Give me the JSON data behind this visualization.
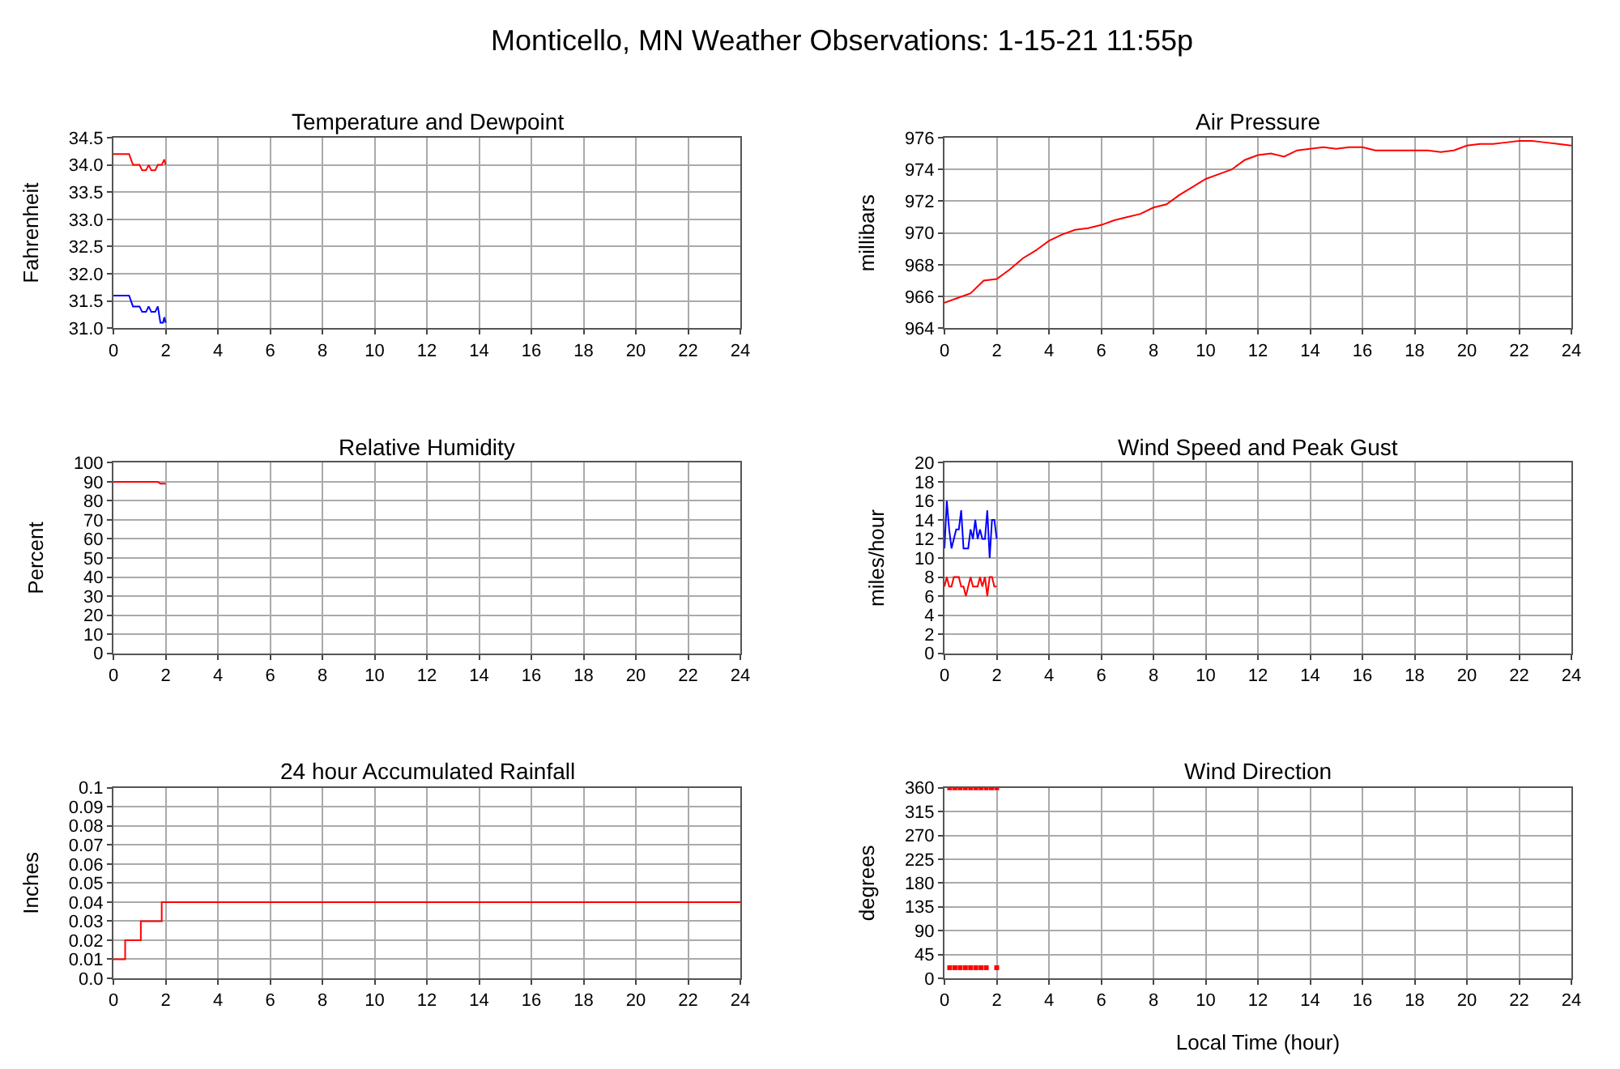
{
  "chart_data": [
    {
      "type": "line",
      "title": "Temperature and Dewpoint",
      "ylabel": "Fahrenheit",
      "annotations": [
        "Monticello, MN Weather Observations: 1-15-21 11:55p"
      ],
      "xlim": [
        0,
        24
      ],
      "xticks": [
        0,
        2,
        4,
        6,
        8,
        10,
        12,
        14,
        16,
        18,
        20,
        22,
        24
      ],
      "ylim": [
        31.0,
        34.5
      ],
      "yticks": [
        {
          "value": 31.0,
          "label": "31.0"
        },
        31.5,
        {
          "value": 32.0,
          "label": "32.0"
        },
        32.5,
        {
          "value": 33.0,
          "label": "33.0"
        },
        33.5,
        {
          "value": 34.0,
          "label": "34.0"
        },
        34.5
      ],
      "grid": true,
      "series": [
        {
          "color": "#ff0000",
          "x": [
            0,
            0.6,
            0.75,
            1.0,
            1.1,
            1.25,
            1.35,
            1.45,
            1.6,
            1.7,
            1.85,
            1.95,
            2.0
          ],
          "values": [
            34.2,
            34.2,
            34.0,
            34.0,
            33.9,
            33.9,
            34.0,
            33.9,
            33.9,
            34.0,
            34.0,
            34.1,
            34.0
          ]
        },
        {
          "color": "#0000ff",
          "x": [
            0,
            0.6,
            0.75,
            1.0,
            1.1,
            1.25,
            1.35,
            1.45,
            1.6,
            1.7,
            1.8,
            1.9,
            1.95,
            2.0
          ],
          "values": [
            31.6,
            31.6,
            31.4,
            31.4,
            31.3,
            31.3,
            31.4,
            31.3,
            31.3,
            31.4,
            31.1,
            31.1,
            31.2,
            31.1
          ]
        }
      ]
    },
    {
      "type": "line",
      "title": "Air Pressure",
      "ylabel": "millibars",
      "xlim": [
        0,
        24
      ],
      "xticks": [
        0,
        2,
        4,
        6,
        8,
        10,
        12,
        14,
        16,
        18,
        20,
        22,
        24
      ],
      "ylim": [
        964,
        976
      ],
      "yticks": [
        964,
        966,
        968,
        970,
        972,
        974,
        976
      ],
      "grid": true,
      "series": [
        {
          "color": "#ff0000",
          "x": [
            0,
            0.5,
            1,
            1.5,
            2,
            2.5,
            3,
            3.5,
            4,
            4.5,
            5,
            5.5,
            6,
            6.5,
            7,
            7.5,
            8,
            8.5,
            9,
            9.5,
            10,
            10.5,
            11,
            11.5,
            12,
            12.5,
            13,
            13.5,
            14,
            14.5,
            15,
            15.5,
            16,
            16.5,
            17,
            17.5,
            18,
            18.5,
            19,
            19.5,
            20,
            20.5,
            21,
            21.5,
            22,
            22.5,
            23,
            23.5,
            24
          ],
          "values": [
            965.6,
            965.9,
            966.2,
            967.0,
            967.1,
            967.7,
            968.4,
            968.9,
            969.5,
            969.9,
            970.2,
            970.3,
            970.5,
            970.8,
            971.0,
            971.2,
            971.6,
            971.8,
            972.4,
            972.9,
            973.4,
            973.7,
            974.0,
            974.6,
            974.9,
            975.0,
            974.8,
            975.2,
            975.3,
            975.4,
            975.3,
            975.4,
            975.4,
            975.2,
            975.2,
            975.2,
            975.2,
            975.2,
            975.1,
            975.2,
            975.5,
            975.6,
            975.6,
            975.7,
            975.8,
            975.8,
            975.7,
            975.6,
            975.5
          ]
        }
      ]
    },
    {
      "type": "line",
      "title": "Relative Humidity",
      "ylabel": "Percent",
      "xlim": [
        0,
        24
      ],
      "xticks": [
        0,
        2,
        4,
        6,
        8,
        10,
        12,
        14,
        16,
        18,
        20,
        22,
        24
      ],
      "ylim": [
        0,
        100
      ],
      "yticks": [
        0,
        10,
        20,
        30,
        40,
        50,
        60,
        70,
        80,
        90,
        100
      ],
      "grid": true,
      "series": [
        {
          "color": "#ff0000",
          "x": [
            0,
            1.7,
            1.8,
            2.0
          ],
          "values": [
            90,
            90,
            89,
            89
          ]
        }
      ]
    },
    {
      "type": "line",
      "title": "Wind Speed and Peak Gust",
      "ylabel": "miles/hour",
      "xlim": [
        0,
        24
      ],
      "xticks": [
        0,
        2,
        4,
        6,
        8,
        10,
        12,
        14,
        16,
        18,
        20,
        22,
        24
      ],
      "ylim": [
        0,
        20
      ],
      "yticks": [
        0,
        2,
        4,
        6,
        8,
        10,
        12,
        14,
        16,
        18,
        20
      ],
      "grid": true,
      "series": [
        {
          "color": "#0000ff",
          "x": [
            0,
            0.09,
            0.18,
            0.27,
            0.36,
            0.45,
            0.55,
            0.64,
            0.73,
            0.82,
            0.91,
            1.0,
            1.09,
            1.18,
            1.27,
            1.36,
            1.45,
            1.55,
            1.64,
            1.73,
            1.82,
            1.91,
            2.0
          ],
          "values": [
            11,
            16,
            13,
            11,
            12,
            13,
            13,
            15,
            11,
            11,
            11,
            13,
            12,
            14,
            12,
            13,
            12,
            12,
            15,
            10,
            14,
            14,
            12
          ]
        },
        {
          "color": "#ff0000",
          "x": [
            0,
            0.09,
            0.18,
            0.27,
            0.36,
            0.45,
            0.55,
            0.64,
            0.73,
            0.82,
            0.91,
            1.0,
            1.09,
            1.18,
            1.27,
            1.36,
            1.45,
            1.55,
            1.64,
            1.73,
            1.82,
            1.91,
            2.0
          ],
          "values": [
            7,
            8,
            7,
            7,
            8,
            8,
            8,
            7,
            7,
            6,
            7,
            8,
            7,
            7,
            7,
            8,
            7,
            8,
            6,
            8,
            8,
            7,
            7
          ]
        }
      ]
    },
    {
      "type": "step",
      "title": "24 hour Accumulated Rainfall",
      "ylabel": "Inches",
      "xlim": [
        0,
        24
      ],
      "xticks": [
        0,
        2,
        4,
        6,
        8,
        10,
        12,
        14,
        16,
        18,
        20,
        22,
        24
      ],
      "ylim": [
        0,
        0.1
      ],
      "yticks": [
        {
          "value": 0,
          "label": "0.0"
        },
        0.01,
        0.02,
        0.03,
        0.04,
        0.05,
        0.06,
        0.07,
        0.08,
        0.09,
        0.1
      ],
      "grid": true,
      "series": [
        {
          "color": "#ff0000",
          "x": [
            0,
            0.45,
            1.05,
            1.85,
            24
          ],
          "values": [
            0.01,
            0.02,
            0.03,
            0.04,
            0.04
          ]
        }
      ]
    },
    {
      "type": "scatter",
      "title": "Wind Direction",
      "xlabel": "Local Time (hour)",
      "ylabel": "degrees",
      "marker": "square",
      "xlim": [
        0,
        24
      ],
      "xticks": [
        0,
        2,
        4,
        6,
        8,
        10,
        12,
        14,
        16,
        18,
        20,
        22,
        24
      ],
      "ylim": [
        0,
        360
      ],
      "yticks": [
        0,
        45,
        90,
        135,
        180,
        225,
        270,
        315,
        360
      ],
      "grid": true,
      "series": [
        {
          "color": "#ff0000",
          "x": [
            0.2,
            0.4,
            0.6,
            0.8,
            1.0,
            1.2,
            1.4,
            1.6,
            1.8,
            2.0
          ],
          "values": [
            360,
            360,
            360,
            360,
            360,
            360,
            360,
            360,
            360,
            360
          ]
        },
        {
          "color": "#ff0000",
          "x": [
            0.2,
            0.4,
            0.6,
            0.8,
            1.0,
            1.2,
            1.4,
            1.6,
            2.0
          ],
          "values": [
            20,
            20,
            20,
            20,
            20,
            20,
            20,
            20,
            20
          ]
        }
      ]
    }
  ]
}
